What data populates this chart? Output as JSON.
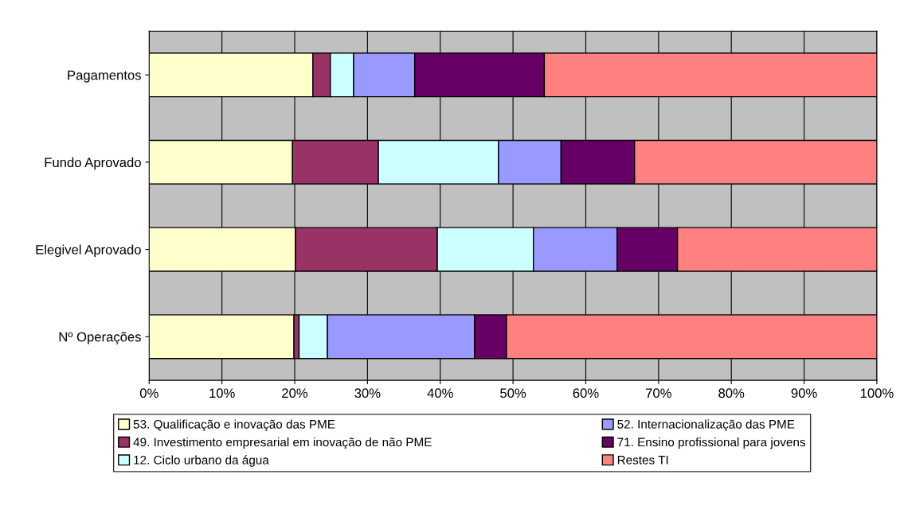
{
  "chart_data": {
    "type": "bar",
    "orientation": "horizontal",
    "stacked": true,
    "categories": [
      "Pagamentos",
      "Fundo Aprovado",
      "Elegivel Aprovado",
      "Nº Operações"
    ],
    "series": [
      {
        "name": "53. Qualificação e inovação das PME",
        "color": "#ffffcc",
        "values": [
          22.5,
          19.7,
          20.1,
          19.9
        ]
      },
      {
        "name": "49. Investimento empresarial em inovação de não PME",
        "color": "#993366",
        "values": [
          2.4,
          11.8,
          19.5,
          0.7
        ]
      },
      {
        "name": "12. Ciclo urbano da água",
        "color": "#ccffff",
        "values": [
          3.2,
          16.5,
          13.2,
          3.9
        ]
      },
      {
        "name": "52. Internacionalização das PME",
        "color": "#9999ff",
        "values": [
          8.4,
          8.6,
          11.5,
          20.2
        ]
      },
      {
        "name": "71. Ensino profissional para jovens",
        "color": "#660066",
        "values": [
          17.8,
          10.1,
          8.3,
          4.4
        ]
      },
      {
        "name": "Restes TI",
        "color": "#ff8080",
        "values": [
          45.7,
          33.3,
          27.4,
          50.9
        ]
      }
    ],
    "xlim": [
      0,
      100
    ],
    "xticks": [
      {
        "value": 0,
        "label": "0%"
      },
      {
        "value": 10,
        "label": "10%"
      },
      {
        "value": 20,
        "label": "20%"
      },
      {
        "value": 30,
        "label": "30%"
      },
      {
        "value": 40,
        "label": "40%"
      },
      {
        "value": 50,
        "label": "50%"
      },
      {
        "value": 60,
        "label": "60%"
      },
      {
        "value": 70,
        "label": "70%"
      },
      {
        "value": 80,
        "label": "80%"
      },
      {
        "value": 90,
        "label": "90%"
      },
      {
        "value": 100,
        "label": "100%"
      }
    ],
    "grid": "x",
    "legend": "bottom"
  }
}
